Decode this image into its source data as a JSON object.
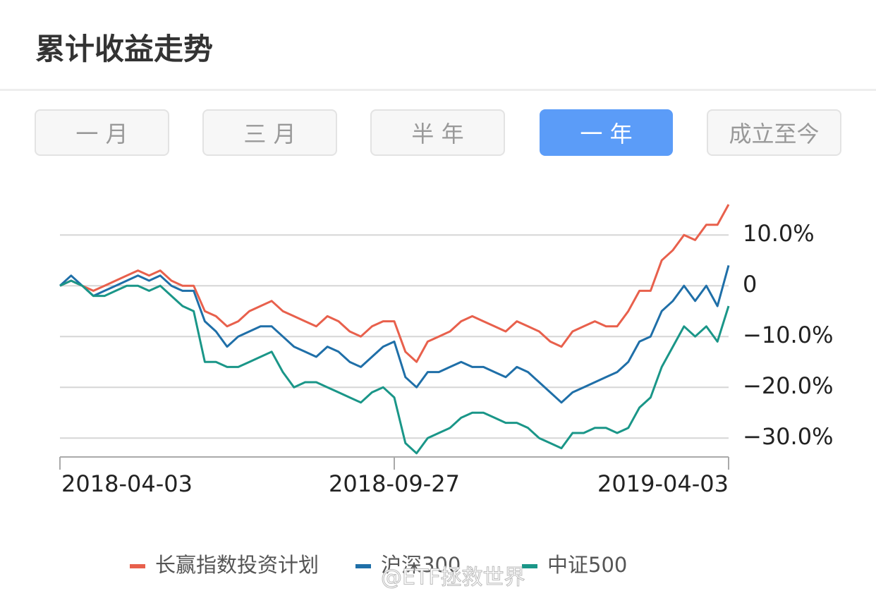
{
  "header": {
    "title": "累计收益走势"
  },
  "tabs": {
    "items": [
      "一 月",
      "三 月",
      "半 年",
      "一 年",
      "成立至今"
    ],
    "active": 3
  },
  "watermark": "@ETF拯救世界",
  "chart_data": {
    "type": "line",
    "categories": [
      "2018-04-03",
      null,
      null,
      null,
      null,
      null,
      null,
      null,
      null,
      null,
      null,
      null,
      null,
      null,
      null,
      null,
      null,
      null,
      null,
      null,
      null,
      null,
      null,
      null,
      null,
      null,
      null,
      null,
      null,
      null,
      "2018-09-27",
      null,
      null,
      null,
      null,
      null,
      null,
      null,
      null,
      null,
      null,
      null,
      null,
      null,
      null,
      null,
      null,
      null,
      null,
      null,
      null,
      null,
      null,
      null,
      null,
      null,
      null,
      null,
      null,
      null,
      "2019-04-03"
    ],
    "series": [
      {
        "name": "长赢指数投资计划",
        "color": "#e8604c",
        "values": [
          0,
          1,
          0,
          -1,
          0,
          1,
          2,
          3,
          2,
          3,
          1,
          0,
          0,
          -5,
          -6,
          -8,
          -7,
          -5,
          -4,
          -3,
          -5,
          -6,
          -7,
          -8,
          -6,
          -7,
          -9,
          -10,
          -8,
          -7,
          -7,
          -13,
          -15,
          -11,
          -10,
          -9,
          -7,
          -6,
          -7,
          -8,
          -9,
          -7,
          -8,
          -9,
          -11,
          -12,
          -9,
          -8,
          -7,
          -8,
          -8,
          -5,
          -1,
          -1,
          5,
          7,
          10,
          9,
          12,
          12,
          16
        ]
      },
      {
        "name": "沪深300",
        "color": "#1f6fa8",
        "values": [
          0,
          2,
          0,
          -2,
          -1,
          0,
          1,
          2,
          1,
          2,
          0,
          -1,
          -1,
          -7,
          -9,
          -12,
          -10,
          -9,
          -8,
          -8,
          -10,
          -12,
          -13,
          -14,
          -12,
          -13,
          -15,
          -16,
          -14,
          -12,
          -11,
          -18,
          -20,
          -17,
          -17,
          -16,
          -15,
          -16,
          -16,
          -17,
          -18,
          -16,
          -17,
          -19,
          -21,
          -23,
          -21,
          -20,
          -19,
          -18,
          -17,
          -15,
          -11,
          -10,
          -5,
          -3,
          0,
          -3,
          0,
          -4,
          4
        ]
      },
      {
        "name": "中证500",
        "color": "#1a9688",
        "values": [
          0,
          1,
          0,
          -2,
          -2,
          -1,
          0,
          0,
          -1,
          0,
          -2,
          -4,
          -5,
          -15,
          -15,
          -16,
          -16,
          -15,
          -14,
          -13,
          -17,
          -20,
          -19,
          -19,
          -20,
          -21,
          -22,
          -23,
          -21,
          -20,
          -22,
          -31,
          -33,
          -30,
          -29,
          -28,
          -26,
          -25,
          -25,
          -26,
          -27,
          -27,
          -28,
          -30,
          -31,
          -32,
          -29,
          -29,
          -28,
          -28,
          -29,
          -28,
          -24,
          -22,
          -16,
          -12,
          -8,
          -10,
          -8,
          -11,
          -4
        ]
      }
    ],
    "ylim": [
      -34,
      16
    ],
    "yticks": [
      {
        "value": 10,
        "label": "10.0%"
      },
      0,
      {
        "value": -10,
        "label": "−10.0%"
      },
      {
        "value": -20,
        "label": "−20.0%"
      },
      {
        "value": -30,
        "label": "−30.0%"
      }
    ],
    "grid": true
  }
}
